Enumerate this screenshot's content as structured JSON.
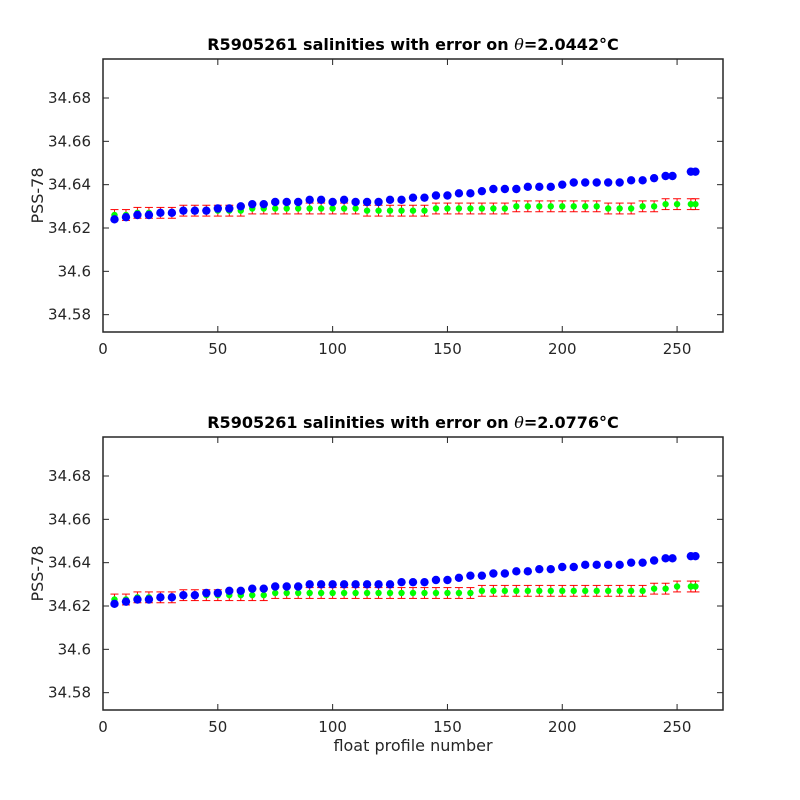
{
  "chart_data": [
    {
      "type": "scatter",
      "title": "R5905261 salinities with error on θ=2.0442°C",
      "title_parts": {
        "prefix": "R5905261 salinities with error on ",
        "theta": "θ",
        "value": "=2.0442",
        "unit": "°C"
      },
      "xlabel": "",
      "ylabel": "PSS-78",
      "xlim": [
        0,
        270
      ],
      "ylim": [
        34.572,
        34.698
      ],
      "xticks": [
        "0",
        "50",
        "100",
        "150",
        "200",
        "250"
      ],
      "yticks": [
        "34.58",
        "34.6",
        "34.62",
        "34.64",
        "34.66",
        "34.68"
      ],
      "grid": false,
      "colors": {
        "measured": "#0000ff",
        "mapped": "#00ff00",
        "error": "#ff0000"
      },
      "series": [
        {
          "role": "measured",
          "x": [
            5,
            10,
            15,
            20,
            25,
            30,
            35,
            40,
            45,
            50,
            55,
            60,
            65,
            70,
            75,
            80,
            85,
            90,
            95,
            100,
            105,
            110,
            115,
            120,
            125,
            130,
            135,
            140,
            145,
            150,
            155,
            160,
            165,
            170,
            175,
            180,
            185,
            190,
            195,
            200,
            205,
            210,
            215,
            220,
            225,
            230,
            235,
            240,
            245,
            248,
            256,
            258
          ],
          "values": [
            34.624,
            34.625,
            34.626,
            34.626,
            34.627,
            34.627,
            34.628,
            34.628,
            34.628,
            34.629,
            34.629,
            34.63,
            34.631,
            34.631,
            34.632,
            34.632,
            34.632,
            34.633,
            34.633,
            34.632,
            34.633,
            34.632,
            34.632,
            34.632,
            34.633,
            34.633,
            34.634,
            34.634,
            34.635,
            34.635,
            34.636,
            34.636,
            34.637,
            34.638,
            34.638,
            34.638,
            34.639,
            34.639,
            34.639,
            34.64,
            34.641,
            34.641,
            34.641,
            34.641,
            34.641,
            34.642,
            34.642,
            34.643,
            34.644,
            34.644,
            34.646,
            34.646
          ]
        },
        {
          "role": "mapped",
          "x": [
            5,
            10,
            15,
            20,
            25,
            30,
            35,
            40,
            45,
            50,
            55,
            60,
            65,
            70,
            75,
            80,
            85,
            90,
            95,
            100,
            105,
            110,
            115,
            120,
            125,
            130,
            135,
            140,
            145,
            150,
            155,
            160,
            165,
            170,
            175,
            180,
            185,
            190,
            195,
            200,
            205,
            210,
            215,
            220,
            225,
            230,
            235,
            240,
            245,
            250,
            256,
            258
          ],
          "values": [
            34.626,
            34.626,
            34.627,
            34.627,
            34.627,
            34.627,
            34.628,
            34.628,
            34.628,
            34.628,
            34.628,
            34.628,
            34.629,
            34.629,
            34.629,
            34.629,
            34.629,
            34.629,
            34.629,
            34.629,
            34.629,
            34.629,
            34.628,
            34.628,
            34.628,
            34.628,
            34.628,
            34.628,
            34.629,
            34.629,
            34.629,
            34.629,
            34.629,
            34.629,
            34.629,
            34.63,
            34.63,
            34.63,
            34.63,
            34.63,
            34.63,
            34.63,
            34.63,
            34.629,
            34.629,
            34.629,
            34.63,
            34.63,
            34.631,
            34.631,
            34.631,
            34.631
          ],
          "error": 0.0025
        }
      ]
    },
    {
      "type": "scatter",
      "title": "R5905261 salinities with error on θ=2.0776°C",
      "title_parts": {
        "prefix": "R5905261 salinities with error on ",
        "theta": "θ",
        "value": "=2.0776",
        "unit": "°C"
      },
      "xlabel": "float profile number",
      "ylabel": "PSS-78",
      "xlim": [
        0,
        270
      ],
      "ylim": [
        34.572,
        34.698
      ],
      "xticks": [
        "0",
        "50",
        "100",
        "150",
        "200",
        "250"
      ],
      "yticks": [
        "34.58",
        "34.6",
        "34.62",
        "34.64",
        "34.66",
        "34.68"
      ],
      "grid": false,
      "colors": {
        "measured": "#0000ff",
        "mapped": "#00ff00",
        "error": "#ff0000"
      },
      "series": [
        {
          "role": "measured",
          "x": [
            5,
            10,
            15,
            20,
            25,
            30,
            35,
            40,
            45,
            50,
            55,
            60,
            65,
            70,
            75,
            80,
            85,
            90,
            95,
            100,
            105,
            110,
            115,
            120,
            125,
            130,
            135,
            140,
            145,
            150,
            155,
            160,
            165,
            170,
            175,
            180,
            185,
            190,
            195,
            200,
            205,
            210,
            215,
            220,
            225,
            230,
            235,
            240,
            245,
            248,
            256,
            258
          ],
          "values": [
            34.621,
            34.622,
            34.623,
            34.623,
            34.624,
            34.624,
            34.625,
            34.625,
            34.626,
            34.626,
            34.627,
            34.627,
            34.628,
            34.628,
            34.629,
            34.629,
            34.629,
            34.63,
            34.63,
            34.63,
            34.63,
            34.63,
            34.63,
            34.63,
            34.63,
            34.631,
            34.631,
            34.631,
            34.632,
            34.632,
            34.633,
            34.634,
            34.634,
            34.635,
            34.635,
            34.636,
            34.636,
            34.637,
            34.637,
            34.638,
            34.638,
            34.639,
            34.639,
            34.639,
            34.639,
            34.64,
            34.64,
            34.641,
            34.642,
            34.642,
            34.643,
            34.643
          ]
        },
        {
          "role": "mapped",
          "x": [
            5,
            10,
            15,
            20,
            25,
            30,
            35,
            40,
            45,
            50,
            55,
            60,
            65,
            70,
            75,
            80,
            85,
            90,
            95,
            100,
            105,
            110,
            115,
            120,
            125,
            130,
            135,
            140,
            145,
            150,
            155,
            160,
            165,
            170,
            175,
            180,
            185,
            190,
            195,
            200,
            205,
            210,
            215,
            220,
            225,
            230,
            235,
            240,
            245,
            250,
            256,
            258
          ],
          "values": [
            34.623,
            34.623,
            34.624,
            34.624,
            34.624,
            34.624,
            34.625,
            34.625,
            34.625,
            34.625,
            34.625,
            34.625,
            34.625,
            34.625,
            34.626,
            34.626,
            34.626,
            34.626,
            34.626,
            34.626,
            34.626,
            34.626,
            34.626,
            34.626,
            34.626,
            34.626,
            34.626,
            34.626,
            34.626,
            34.626,
            34.626,
            34.626,
            34.627,
            34.627,
            34.627,
            34.627,
            34.627,
            34.627,
            34.627,
            34.627,
            34.627,
            34.627,
            34.627,
            34.627,
            34.627,
            34.627,
            34.627,
            34.628,
            34.628,
            34.629,
            34.629,
            34.629
          ],
          "error": 0.0025
        }
      ]
    }
  ]
}
